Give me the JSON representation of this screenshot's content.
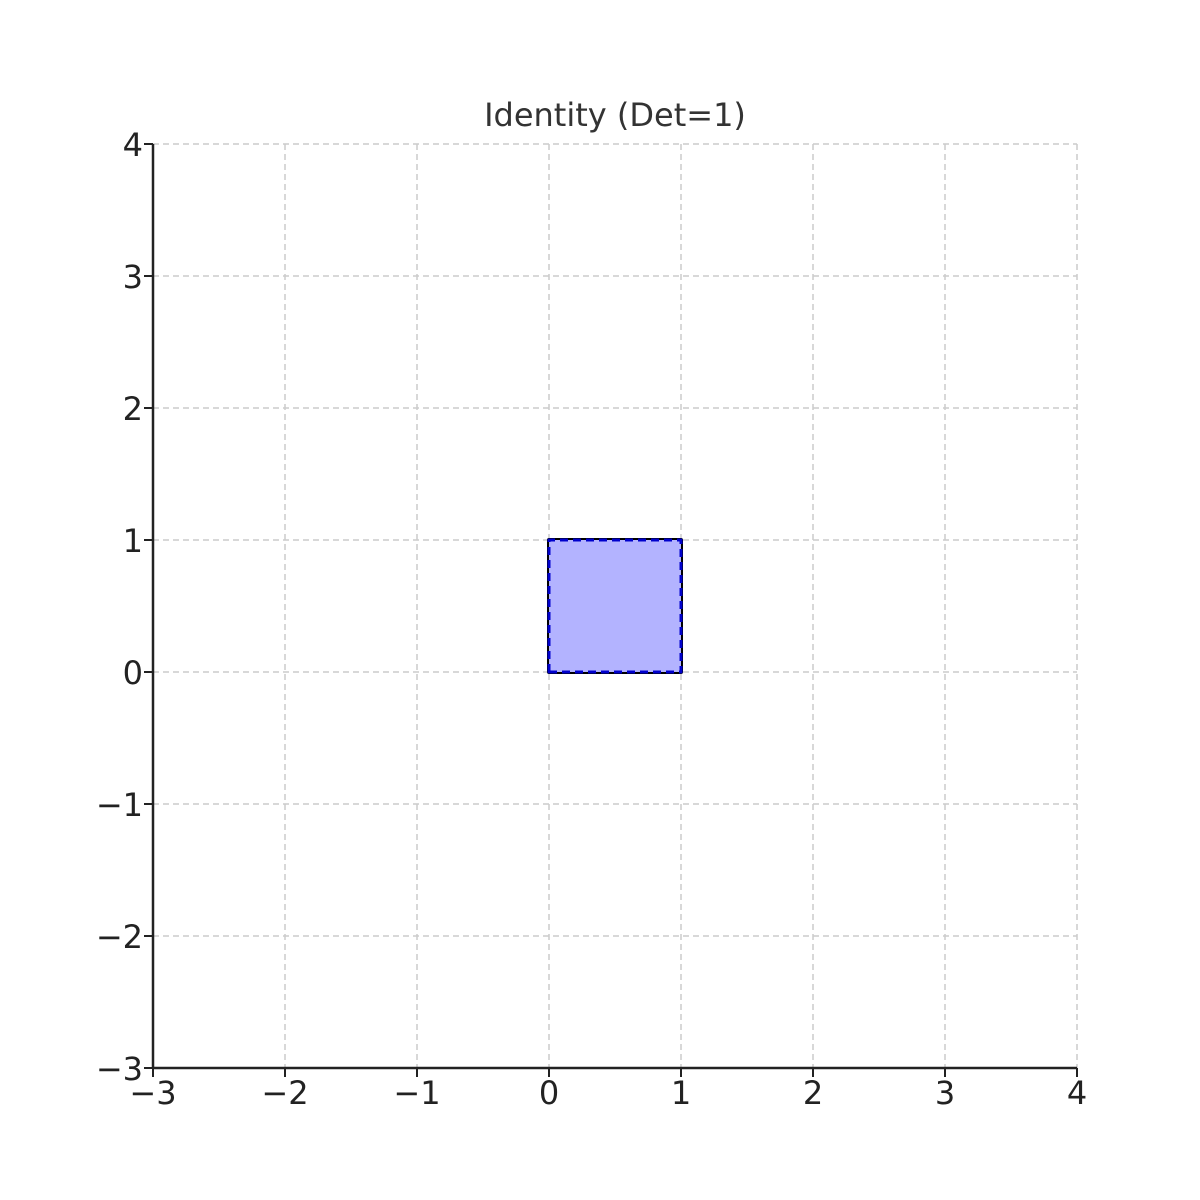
{
  "chart_data": {
    "type": "area",
    "title": "Identity (Det=1)",
    "xlabel": "",
    "ylabel": "",
    "xlim": [
      -3,
      4
    ],
    "ylim": [
      -3,
      4
    ],
    "xticks": [
      -3,
      -2,
      -1,
      0,
      1,
      2,
      3,
      4
    ],
    "yticks": [
      -3,
      -2,
      -1,
      0,
      1,
      2,
      3,
      4
    ],
    "xtick_labels": [
      "−3",
      "−2",
      "−1",
      "0",
      "1",
      "2",
      "3",
      "4"
    ],
    "ytick_labels": [
      "−3",
      "−2",
      "−1",
      "0",
      "1",
      "2",
      "3",
      "4"
    ],
    "grid": true,
    "series": [
      {
        "role": "original-unit-square",
        "points": [
          [
            0,
            0
          ],
          [
            1,
            0
          ],
          [
            1,
            1
          ],
          [
            0,
            1
          ]
        ],
        "fill": "none",
        "stroke": "#000000",
        "style": "solid"
      },
      {
        "role": "transformed-square",
        "points": [
          [
            0,
            0
          ],
          [
            1,
            0
          ],
          [
            1,
            1
          ],
          [
            0,
            1
          ]
        ],
        "fill": "#b3b3ff",
        "stroke": "#0000cc",
        "style": "dashed"
      }
    ]
  }
}
